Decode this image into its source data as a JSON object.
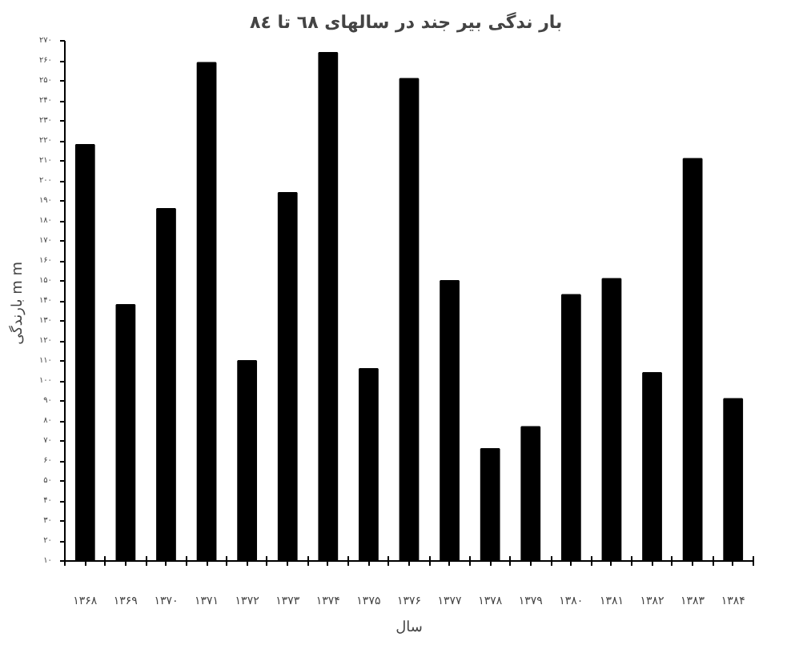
{
  "chart_data": {
    "type": "bar",
    "title": "بار ندگی  بیر جند در سالهای ٦٨ تا ٨٤",
    "xlabel": "سال",
    "ylabel": "بارندگی  m m",
    "categories": [
      "۱۳۶۸",
      "۱۳۶۹",
      "۱۳۷۰",
      "۱۳۷۱",
      "۱۳۷۲",
      "۱۳۷۳",
      "۱۳۷۴",
      "۱۳۷۵",
      "۱۳۷۶",
      "۱۳۷۷",
      "۱۳۷۸",
      "۱۳۷۹",
      "۱۳۸۰",
      "۱۳۸۱",
      "۱۳۸۲",
      "۱۳۸۳",
      "۱۳۸۴"
    ],
    "values": [
      218,
      138,
      186,
      259,
      110,
      194,
      264,
      106,
      251,
      150,
      66,
      77,
      143,
      151,
      104,
      211,
      91
    ],
    "color": "#000000",
    "ylim": [
      10,
      270
    ],
    "yticks": [
      {
        "value": 10,
        "label": "۱۰"
      },
      {
        "value": 20,
        "label": "۲۰"
      },
      {
        "value": 30,
        "label": "۳۰"
      },
      {
        "value": 40,
        "label": "۴۰"
      },
      {
        "value": 50,
        "label": "۵۰"
      },
      {
        "value": 60,
        "label": "۶۰"
      },
      {
        "value": 70,
        "label": "۷۰"
      },
      {
        "value": 80,
        "label": "۸۰"
      },
      {
        "value": 90,
        "label": "۹۰"
      },
      {
        "value": 100,
        "label": "۱۰۰"
      },
      {
        "value": 110,
        "label": "۱۱۰"
      },
      {
        "value": 120,
        "label": "۱۲۰"
      },
      {
        "value": 130,
        "label": "۱۳۰"
      },
      {
        "value": 140,
        "label": "۱۴۰"
      },
      {
        "value": 150,
        "label": "۱۵۰"
      },
      {
        "value": 160,
        "label": "۱۶۰"
      },
      {
        "value": 170,
        "label": "۱۷۰"
      },
      {
        "value": 180,
        "label": "۱۸۰"
      },
      {
        "value": 190,
        "label": "۱۹۰"
      },
      {
        "value": 200,
        "label": "۲۰۰"
      },
      {
        "value": 210,
        "label": "۲۱۰"
      },
      {
        "value": 220,
        "label": "۲۲۰"
      },
      {
        "value": 230,
        "label": "۲۳۰"
      },
      {
        "value": 240,
        "label": "۲۴۰"
      },
      {
        "value": 250,
        "label": "۲۵۰"
      },
      {
        "value": 260,
        "label": "۲۶۰"
      },
      {
        "value": 270,
        "label": "۲۷۰"
      }
    ],
    "grid": false
  }
}
